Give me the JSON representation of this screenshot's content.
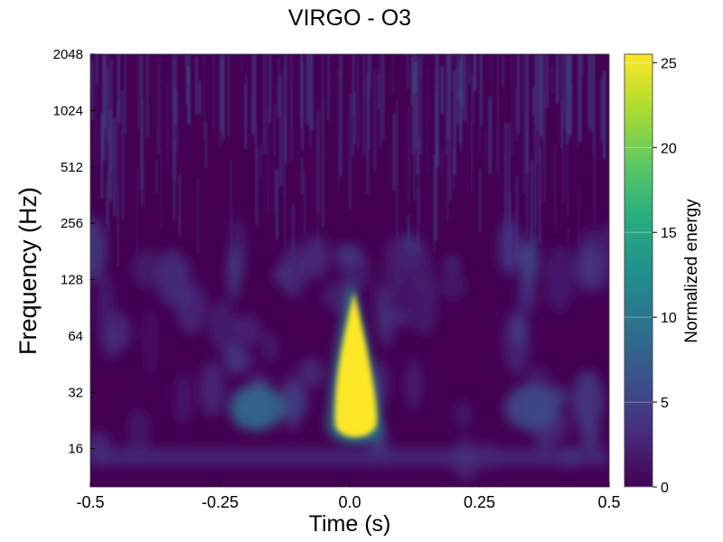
{
  "chart_data": {
    "type": "heatmap",
    "title": "VIRGO - O3",
    "xlabel": "Time (s)",
    "ylabel": "Frequency (Hz)",
    "x_range": [
      -0.5,
      0.5
    ],
    "x_ticks": [
      -0.5,
      -0.25,
      0.0,
      0.25,
      0.5
    ],
    "x_tick_labels": [
      "-0.5",
      "-0.25",
      "0.0",
      "0.25",
      "0.5"
    ],
    "y_scale": "log2",
    "y_range": [
      10,
      2048
    ],
    "y_ticks": [
      16,
      32,
      64,
      128,
      256,
      512,
      1024,
      2048
    ],
    "y_tick_labels": [
      "16",
      "32",
      "64",
      "128",
      "256",
      "512",
      "1024",
      "2048"
    ],
    "colorbar": {
      "label": "Normalized energy",
      "colormap": "viridis",
      "range": [
        0,
        25.5
      ],
      "ticks": [
        0,
        5,
        10,
        15,
        20,
        25
      ],
      "tick_labels": [
        "0",
        "5",
        "10",
        "15",
        "20",
        "25"
      ]
    },
    "features": [
      {
        "t": 0.01,
        "f_low": 18,
        "f_high": 110,
        "energy": 25.5
      },
      {
        "t": -0.18,
        "f_low": 20,
        "f_high": 35,
        "energy": 9
      },
      {
        "t": 0.35,
        "f_low": 20,
        "f_high": 35,
        "energy": 6
      }
    ],
    "grid": true
  }
}
